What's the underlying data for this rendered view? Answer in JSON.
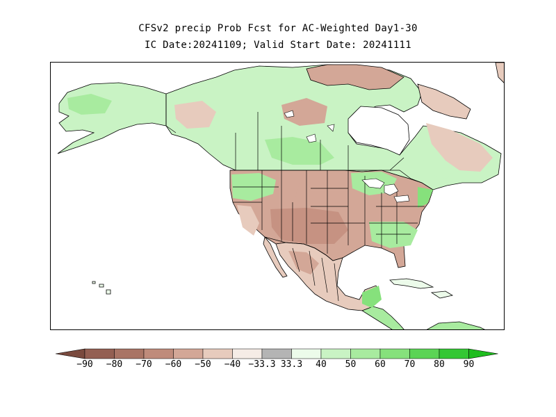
{
  "title": {
    "line1": "CFSv2 precip Prob Fcst for AC-Weighted Day1-30",
    "line2": "IC Date:20241109; Valid Start Date: 20241111"
  },
  "legend": {
    "ticks": [
      "-90",
      "-80",
      "-70",
      "-60",
      "-50",
      "-40",
      "-33.3",
      "33.3",
      "40",
      "50",
      "60",
      "70",
      "80",
      "90"
    ],
    "colors": [
      "#7a4a3e",
      "#935f52",
      "#a97465",
      "#bf8b7b",
      "#d3a797",
      "#e7cbbd",
      "#f5ece6",
      "#b4b4b4",
      "#ecfbea",
      "#c9f3c4",
      "#a8eb9f",
      "#86e17c",
      "#5bd455",
      "#34c734",
      "#1fbd1f"
    ]
  },
  "map": {
    "ocean_color": "#ffffff",
    "wet_colors": [
      "#ecfbea",
      "#c9f3c4",
      "#a8eb9f",
      "#86e17c"
    ],
    "dry_colors": [
      "#f5ece6",
      "#e7cbbd",
      "#d3a797",
      "#bf8b7b"
    ],
    "boundary_color": "#000000"
  }
}
